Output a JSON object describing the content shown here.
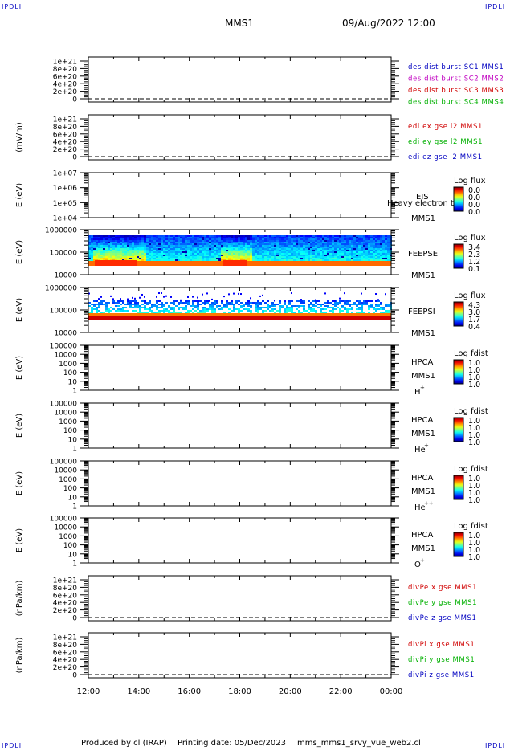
{
  "header": {
    "corner_label": "IPDLI",
    "spacecraft": "MMS1",
    "datetime": "09/Aug/2022 12:00"
  },
  "footer": {
    "produced_by": "Produced by cl (IRAP)",
    "printing_date": "Printing date: 05/Dec/2023",
    "filename": "mms_mms1_srvy_vue_web2.cl"
  },
  "colors": {
    "red": "#d00000",
    "magenta": "#c000c0",
    "blue": "#0000c0",
    "green": "#00b000",
    "ink": "#000000"
  },
  "chart_data": {
    "type": "multi-panel-timeseries",
    "x_ticks": [
      "12:00",
      "14:00",
      "16:00",
      "18:00",
      "20:00",
      "22:00",
      "00:00"
    ],
    "panels": [
      {
        "id": "des-dist-burst",
        "kind": "line",
        "ylabel": "",
        "ticks": [
          "1e+21",
          "8e+20",
          "6e+20",
          "4e+20",
          "2e+20",
          "0"
        ],
        "legend": [
          {
            "text": "des dist burst SC1 MMS1",
            "color": "#0000c0"
          },
          {
            "text": "des dist burst SC2 MMS2",
            "color": "#c000c0"
          },
          {
            "text": "des dist burst SC3 MMS3",
            "color": "#d00000"
          },
          {
            "text": "des dist burst SC4 MMS4",
            "color": "#00b000"
          }
        ]
      },
      {
        "id": "edi-e-gse",
        "kind": "line",
        "ylabel": "(mV/m)",
        "ticks": [
          "1e+21",
          "8e+20",
          "6e+20",
          "4e+20",
          "2e+20",
          "0"
        ],
        "legend": [
          {
            "text": "edi ex gse l2 MMS1",
            "color": "#d00000"
          },
          {
            "text": "edi ey gse l2 MMS1",
            "color": "#00b000"
          },
          {
            "text": "edi ez gse l2 MMS1",
            "color": "#0000c0"
          }
        ]
      },
      {
        "id": "eis",
        "kind": "spectrogram",
        "ylabel": "E (eV)",
        "ticks": [
          "1e+07",
          "1e+06",
          "1e+05",
          "1e+04"
        ],
        "instrument": [
          "EIS",
          "MMS1"
        ],
        "overlay_text": "Heavy electron te",
        "colorbar_title": "Log flux",
        "colorbar_values": [
          "0.0",
          "0.0",
          "0.0",
          "0.0"
        ],
        "data": "empty"
      },
      {
        "id": "feepse",
        "kind": "spectrogram",
        "ylabel": "E (eV)",
        "ticks": [
          "1000000",
          "100000",
          "10000"
        ],
        "instrument": [
          "FEEPSE",
          "MMS1"
        ],
        "colorbar_title": "Log flux",
        "colorbar_values": [
          "3.4",
          "2.3",
          "1.2",
          "0.1"
        ],
        "data": "filled"
      },
      {
        "id": "feepsi",
        "kind": "spectrogram",
        "ylabel": "E (eV)",
        "ticks": [
          "1000000",
          "100000",
          "10000"
        ],
        "instrument": [
          "FEEPSI",
          "MMS1"
        ],
        "colorbar_title": "Log flux",
        "colorbar_values": [
          "4.3",
          "3.0",
          "1.7",
          "0.4"
        ],
        "data": "filled"
      },
      {
        "id": "hpca-h",
        "kind": "spectrogram",
        "ylabel": "E (eV)",
        "ticks": [
          "100000",
          "10000",
          "1000",
          "100",
          "10",
          "1"
        ],
        "instrument": [
          "HPCA",
          "MMS1"
        ],
        "species": "H",
        "charge": "+",
        "colorbar_title": "Log fdist",
        "colorbar_values": [
          "1.0",
          "1.0",
          "1.0",
          "1.0"
        ],
        "data": "empty"
      },
      {
        "id": "hpca-he",
        "kind": "spectrogram",
        "ylabel": "E (eV)",
        "ticks": [
          "100000",
          "10000",
          "1000",
          "100",
          "10",
          "1"
        ],
        "instrument": [
          "HPCA",
          "MMS1"
        ],
        "species": "He",
        "charge": "+",
        "colorbar_title": "Log fdist",
        "colorbar_values": [
          "1.0",
          "1.0",
          "1.0",
          "1.0"
        ],
        "data": "empty"
      },
      {
        "id": "hpca-he2",
        "kind": "spectrogram",
        "ylabel": "E (eV)",
        "ticks": [
          "100000",
          "10000",
          "1000",
          "100",
          "10",
          "1"
        ],
        "instrument": [
          "HPCA",
          "MMS1"
        ],
        "species": "He",
        "charge": "++",
        "colorbar_title": "Log fdist",
        "colorbar_values": [
          "1.0",
          "1.0",
          "1.0",
          "1.0"
        ],
        "data": "empty"
      },
      {
        "id": "hpca-o",
        "kind": "spectrogram",
        "ylabel": "E (eV)",
        "ticks": [
          "100000",
          "10000",
          "1000",
          "100",
          "10",
          "1"
        ],
        "instrument": [
          "HPCA",
          "MMS1"
        ],
        "species": "O",
        "charge": "+",
        "colorbar_title": "Log fdist",
        "colorbar_values": [
          "1.0",
          "1.0",
          "1.0",
          "1.0"
        ],
        "data": "empty"
      },
      {
        "id": "divpe",
        "kind": "line",
        "ylabel": "(nPa/km)",
        "ticks": [
          "1e+21",
          "8e+20",
          "6e+20",
          "4e+20",
          "2e+20",
          "0"
        ],
        "legend": [
          {
            "text": "divPe x gse MMS1",
            "color": "#d00000"
          },
          {
            "text": "divPe y gse MMS1",
            "color": "#00b000"
          },
          {
            "text": "divPe z gse MMS1",
            "color": "#0000c0"
          }
        ]
      },
      {
        "id": "divpi",
        "kind": "line",
        "ylabel": "(nPa/km)",
        "ticks": [
          "1e+21",
          "8e+20",
          "6e+20",
          "4e+20",
          "2e+20",
          "0"
        ],
        "legend": [
          {
            "text": "divPi x gse MMS1",
            "color": "#d00000"
          },
          {
            "text": "divPi y gse MMS1",
            "color": "#00b000"
          },
          {
            "text": "divPi z gse MMS1",
            "color": "#0000c0"
          }
        ]
      }
    ]
  }
}
